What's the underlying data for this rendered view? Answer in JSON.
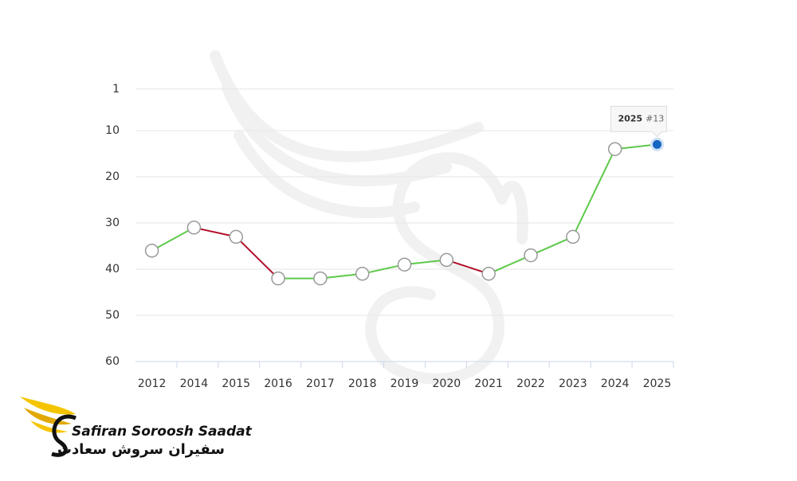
{
  "chart_data": {
    "type": "line",
    "categories": [
      "2012",
      "2014",
      "2015",
      "2016",
      "2017",
      "2018",
      "2019",
      "2020",
      "2021",
      "2022",
      "2023",
      "2024",
      "2025"
    ],
    "values": [
      36,
      31,
      33,
      42,
      42,
      41,
      39,
      38,
      41,
      37,
      33,
      14,
      13
    ],
    "ylim": [
      0,
      60
    ],
    "yticks": [
      1,
      10,
      20,
      30,
      40,
      50,
      60
    ],
    "reversed": true,
    "grid": true,
    "colors": {
      "improve": "#5ec94a",
      "decline": "#b0102a"
    },
    "highlight": {
      "index": 12,
      "label": "#13",
      "color": "#1565c0"
    }
  },
  "logo": {
    "latin": "Safiran Soroosh Saadat",
    "persian": "سفیران سروش سعادت"
  }
}
